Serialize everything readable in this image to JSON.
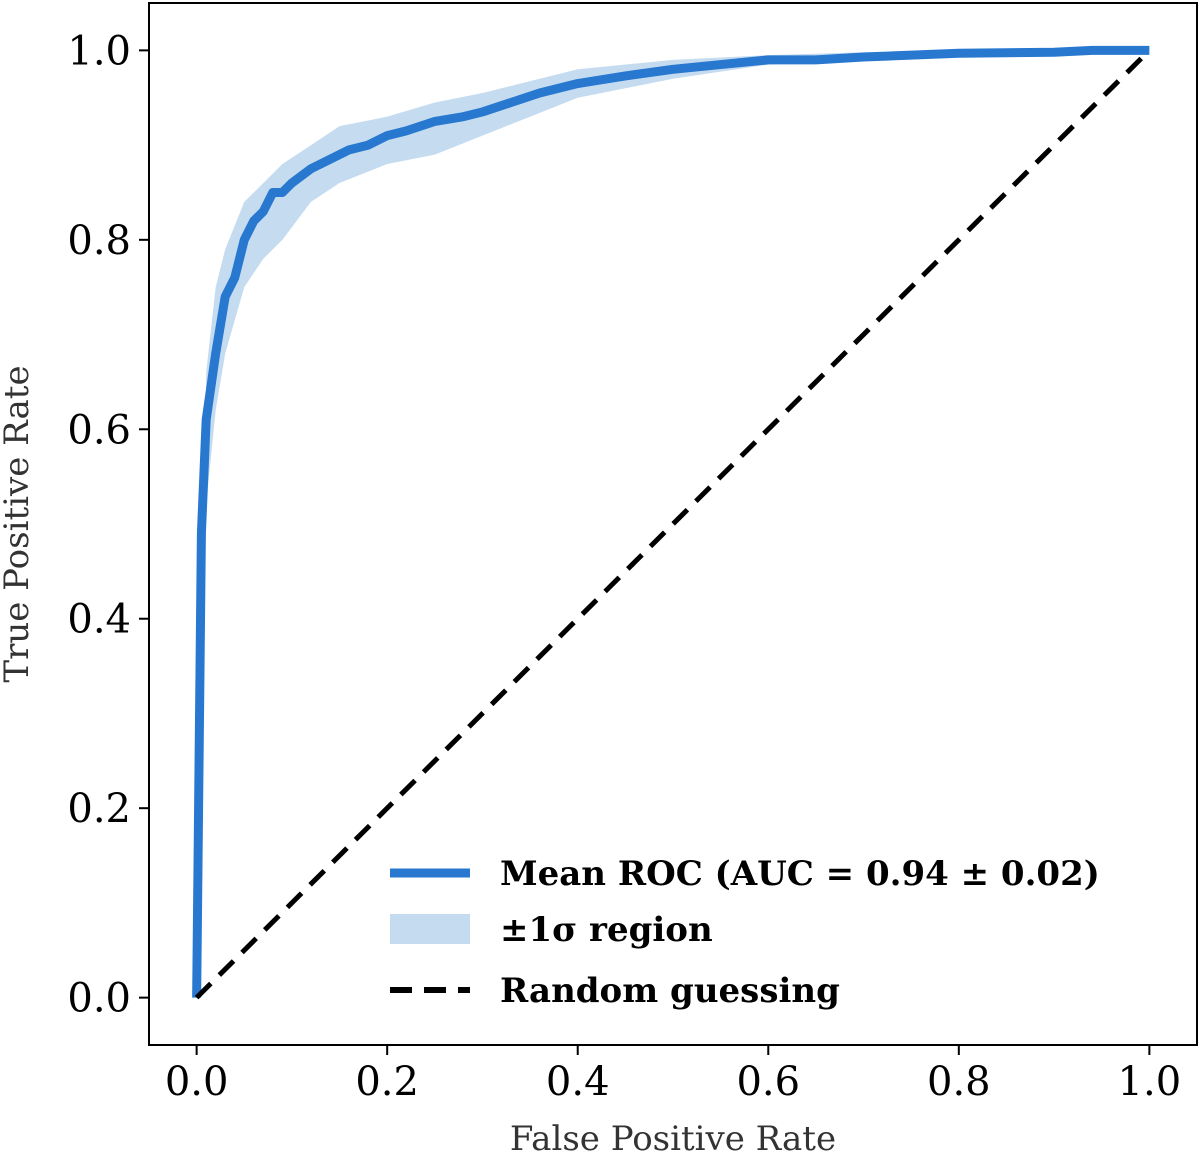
{
  "chart_data": {
    "type": "line",
    "title": "",
    "xlabel": "False Positive Rate",
    "ylabel": "True Positive Rate",
    "xlim": [
      -0.05,
      1.05
    ],
    "ylim": [
      -0.05,
      1.05
    ],
    "xticks": [
      "0.0",
      "0.2",
      "0.4",
      "0.6",
      "0.8",
      "1.0"
    ],
    "yticks": [
      "0.0",
      "0.2",
      "0.4",
      "0.6",
      "0.8",
      "1.0"
    ],
    "grid": false,
    "legend_position": "lower-right",
    "series": [
      {
        "name": "Mean ROC (AUC = 0.94 ± 0.02)",
        "kind": "line",
        "color": "#2878d0",
        "x": [
          0.0,
          0.005,
          0.01,
          0.02,
          0.03,
          0.04,
          0.05,
          0.06,
          0.07,
          0.08,
          0.09,
          0.1,
          0.12,
          0.14,
          0.16,
          0.18,
          0.2,
          0.22,
          0.25,
          0.28,
          0.3,
          0.33,
          0.36,
          0.4,
          0.45,
          0.5,
          0.55,
          0.6,
          0.65,
          0.7,
          0.8,
          0.9,
          0.94,
          1.0
        ],
        "y": [
          0.0,
          0.49,
          0.61,
          0.68,
          0.74,
          0.76,
          0.8,
          0.82,
          0.83,
          0.85,
          0.85,
          0.86,
          0.875,
          0.885,
          0.895,
          0.9,
          0.91,
          0.915,
          0.925,
          0.93,
          0.935,
          0.945,
          0.955,
          0.965,
          0.973,
          0.98,
          0.985,
          0.99,
          0.99,
          0.993,
          0.997,
          0.998,
          1.0,
          1.0
        ]
      },
      {
        "name": "±1σ region",
        "kind": "band",
        "color": "#c5dcf0",
        "x": [
          0.0,
          0.01,
          0.02,
          0.03,
          0.05,
          0.07,
          0.09,
          0.12,
          0.15,
          0.2,
          0.25,
          0.3,
          0.4,
          0.5,
          0.6,
          0.7,
          0.8,
          0.9,
          1.0
        ],
        "lower": [
          0.0,
          0.52,
          0.62,
          0.68,
          0.75,
          0.78,
          0.8,
          0.84,
          0.86,
          0.88,
          0.89,
          0.91,
          0.95,
          0.97,
          0.985,
          0.99,
          0.995,
          0.998,
          1.0
        ],
        "upper": [
          0.0,
          0.66,
          0.75,
          0.79,
          0.84,
          0.86,
          0.88,
          0.9,
          0.92,
          0.93,
          0.945,
          0.955,
          0.98,
          0.99,
          0.995,
          0.998,
          1.0,
          1.0,
          1.0
        ]
      },
      {
        "name": "Random guessing",
        "kind": "dashed",
        "color": "#000000",
        "x": [
          0.0,
          1.0
        ],
        "y": [
          0.0,
          1.0
        ]
      }
    ]
  }
}
